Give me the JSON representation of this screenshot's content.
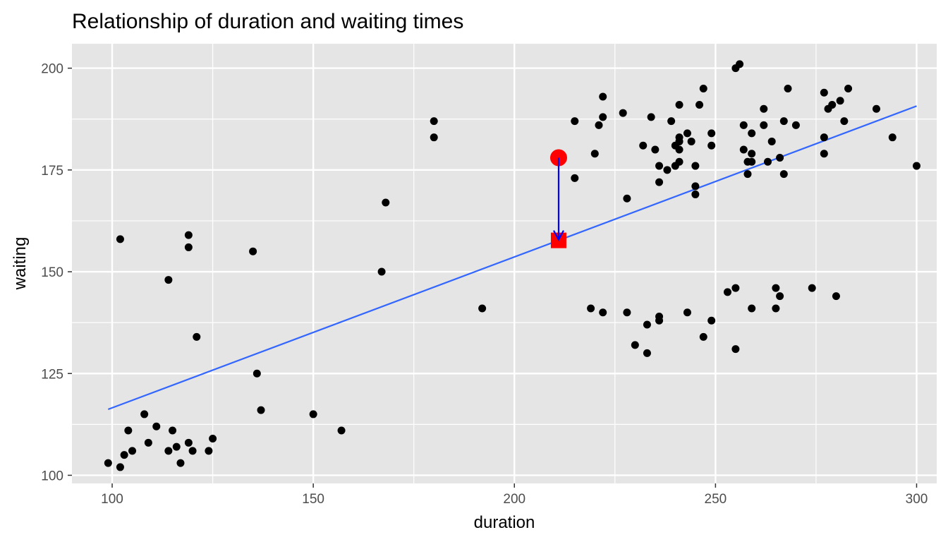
{
  "chart_data": {
    "type": "scatter",
    "title": "Relationship of duration and waiting times",
    "xlabel": "duration",
    "ylabel": "waiting",
    "xlim": [
      90,
      305
    ],
    "ylim": [
      98,
      206
    ],
    "x_ticks": [
      100,
      150,
      200,
      250,
      300
    ],
    "y_ticks": [
      100,
      125,
      150,
      175,
      200
    ],
    "x_tick_labels": [
      "100",
      "150",
      "200",
      "250",
      "300"
    ],
    "y_tick_labels": [
      "100",
      "125",
      "150",
      "175",
      "200"
    ],
    "grid": true,
    "points": [
      [
        99,
        103
      ],
      [
        102,
        102
      ],
      [
        103,
        105
      ],
      [
        104,
        111
      ],
      [
        105,
        106
      ],
      [
        108,
        115
      ],
      [
        109,
        108
      ],
      [
        111,
        112
      ],
      [
        114,
        106
      ],
      [
        115,
        111
      ],
      [
        116,
        107
      ],
      [
        117,
        103
      ],
      [
        119,
        108
      ],
      [
        120,
        106
      ],
      [
        124,
        106
      ],
      [
        125,
        109
      ],
      [
        102,
        158
      ],
      [
        114,
        148
      ],
      [
        119,
        159
      ],
      [
        119,
        156
      ],
      [
        121,
        134
      ],
      [
        135,
        155
      ],
      [
        136,
        125
      ],
      [
        137,
        116
      ],
      [
        150,
        115
      ],
      [
        157,
        111
      ],
      [
        167,
        150
      ],
      [
        168,
        167
      ],
      [
        180,
        187
      ],
      [
        180,
        183
      ],
      [
        192,
        141
      ],
      [
        215,
        187
      ],
      [
        215,
        173
      ],
      [
        220,
        179
      ],
      [
        221,
        186
      ],
      [
        222,
        193
      ],
      [
        222,
        188
      ],
      [
        227,
        189
      ],
      [
        228,
        168
      ],
      [
        232,
        181
      ],
      [
        234,
        188
      ],
      [
        235,
        180
      ],
      [
        236,
        176
      ],
      [
        236,
        172
      ],
      [
        238,
        175
      ],
      [
        239,
        187
      ],
      [
        240,
        181
      ],
      [
        240,
        176
      ],
      [
        241,
        191
      ],
      [
        241,
        183
      ],
      [
        241,
        182
      ],
      [
        241,
        180
      ],
      [
        241,
        177
      ],
      [
        243,
        184
      ],
      [
        244,
        182
      ],
      [
        245,
        176
      ],
      [
        245,
        171
      ],
      [
        245,
        169
      ],
      [
        246,
        191
      ],
      [
        247,
        195
      ],
      [
        249,
        184
      ],
      [
        249,
        181
      ],
      [
        255,
        200
      ],
      [
        256,
        201
      ],
      [
        257,
        186
      ],
      [
        257,
        180
      ],
      [
        258,
        177
      ],
      [
        258,
        174
      ],
      [
        259,
        184
      ],
      [
        259,
        179
      ],
      [
        259,
        177
      ],
      [
        262,
        190
      ],
      [
        262,
        186
      ],
      [
        263,
        177
      ],
      [
        264,
        182
      ],
      [
        266,
        178
      ],
      [
        267,
        187
      ],
      [
        267,
        174
      ],
      [
        268,
        195
      ],
      [
        270,
        186
      ],
      [
        277,
        194
      ],
      [
        277,
        183
      ],
      [
        277,
        179
      ],
      [
        278,
        190
      ],
      [
        279,
        191
      ],
      [
        281,
        192
      ],
      [
        282,
        187
      ],
      [
        283,
        195
      ],
      [
        290,
        190
      ],
      [
        294,
        183
      ],
      [
        300,
        176
      ],
      [
        219,
        141
      ],
      [
        222,
        140
      ],
      [
        228,
        140
      ],
      [
        230,
        132
      ],
      [
        233,
        137
      ],
      [
        233,
        130
      ],
      [
        236,
        139
      ],
      [
        236,
        138
      ],
      [
        243,
        140
      ],
      [
        247,
        134
      ],
      [
        249,
        138
      ],
      [
        253,
        145
      ],
      [
        255,
        146
      ],
      [
        255,
        131
      ],
      [
        259,
        141
      ],
      [
        265,
        146
      ],
      [
        265,
        141
      ],
      [
        266,
        144
      ],
      [
        274,
        146
      ],
      [
        280,
        144
      ]
    ],
    "regression_line": {
      "color": "#3366FF",
      "from": [
        99,
        116.2
      ],
      "to": [
        300,
        190.7
      ]
    },
    "highlight": {
      "observed": [
        211,
        178
      ],
      "fitted": [
        211,
        157.7
      ],
      "observed_color": "#FF0000",
      "fitted_color": "#FF0000",
      "arrow_color": "#0000FF"
    },
    "colors": {
      "panel_background": "#E5E5E5",
      "gridline": "#FFFFFF",
      "point": "#000000"
    }
  }
}
